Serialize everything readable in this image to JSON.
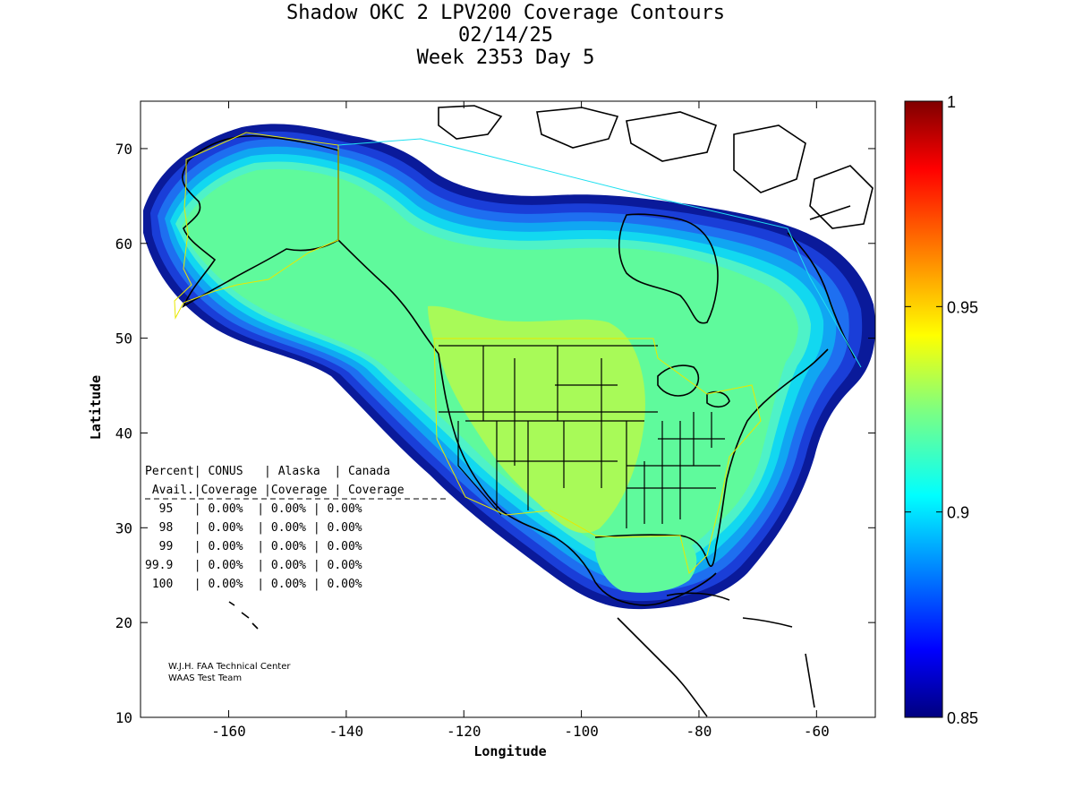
{
  "title": {
    "line1": "Shadow OKC 2 LPV200 Coverage Contours",
    "line2": "02/14/25",
    "line3": "Week 2353 Day 5"
  },
  "chart_data": {
    "type": "heatmap",
    "title": "Shadow OKC 2 LPV200 Coverage Contours",
    "xlabel": "Longitude",
    "ylabel": "Latitude",
    "xlim": [
      -175,
      -50
    ],
    "ylim": [
      10,
      75
    ],
    "x_ticks": [
      -160,
      -140,
      -120,
      -100,
      -80,
      -60
    ],
    "x_tick_labels": [
      "-160",
      "-140",
      "-120",
      "-100",
      "-80",
      "-60"
    ],
    "y_ticks": [
      10,
      20,
      30,
      40,
      50,
      60,
      70
    ],
    "y_tick_labels": [
      "10",
      "20",
      "30",
      "40",
      "50",
      "60",
      "70"
    ],
    "colorbar": {
      "min": 0.85,
      "max": 1,
      "ticks": [
        0.85,
        0.9,
        0.95,
        1
      ],
      "tick_labels": [
        "0.85",
        "0.9",
        "0.95",
        "1"
      ],
      "colormap": "jet"
    },
    "contour_regions": [
      {
        "name": "coverage-band-0.85",
        "value": 0.855,
        "color": "#0a1a9a"
      },
      {
        "name": "coverage-band-0.87",
        "value": 0.87,
        "color": "#1a3ed8"
      },
      {
        "name": "coverage-band-0.88",
        "value": 0.88,
        "color": "#1e6ff0"
      },
      {
        "name": "coverage-band-0.89",
        "value": 0.89,
        "color": "#10a6f2"
      },
      {
        "name": "coverage-band-0.90",
        "value": 0.9,
        "color": "#12d8f0"
      },
      {
        "name": "coverage-band-0.91",
        "value": 0.91,
        "color": "#4ef2c8"
      },
      {
        "name": "coverage-band-0.92",
        "value": 0.92,
        "color": "#5ffa9c"
      },
      {
        "name": "coverage-band-0.93",
        "value": 0.93,
        "color": "#a8fa58"
      }
    ]
  },
  "table": {
    "header1": "Percent| CONUS   | Alaska  | Canada",
    "header2": " Avail.|Coverage |Coverage | Coverage",
    "rows": [
      "  95   | 0.00%  | 0.00% | 0.00%",
      "  98   | 0.00%  | 0.00% | 0.00%",
      "  99   | 0.00%  | 0.00% | 0.00%",
      "99.9   | 0.00%  | 0.00% | 0.00%",
      " 100   | 0.00%  | 0.00% | 0.00%"
    ]
  },
  "credit": {
    "line1": "W.J.H. FAA Technical Center",
    "line2": "WAAS Test Team"
  }
}
